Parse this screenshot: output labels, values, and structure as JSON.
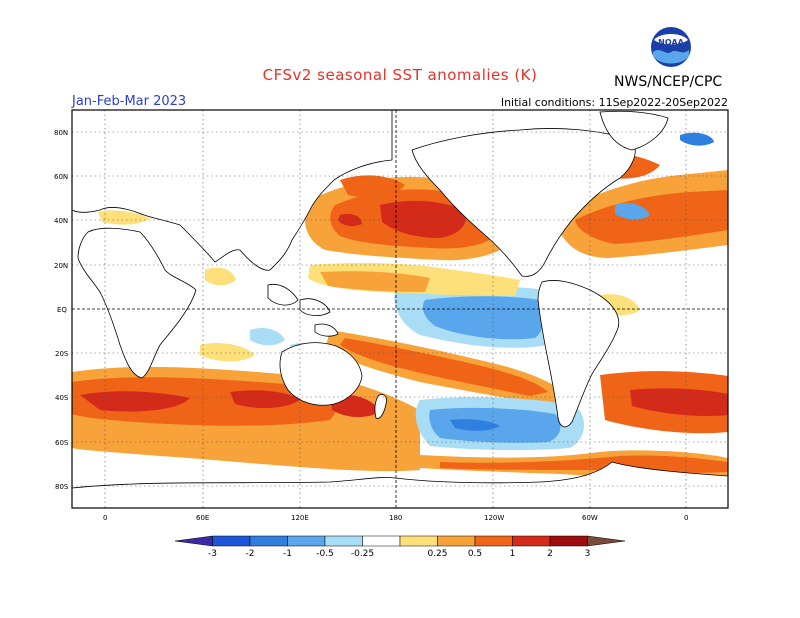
{
  "header": {
    "title": "CFSv2 seasonal SST anomalies (K)",
    "title_color": "#e8302a",
    "agency": "NWS/NCEP/CPC",
    "season": "Jan-Feb-Mar 2023",
    "season_color": "#2a3fd0",
    "initial_conditions": "Initial conditions: 11Sep2022-20Sep2022",
    "logo_text": "NOAA"
  },
  "map": {
    "lat_labels": [
      "80N",
      "60N",
      "40N",
      "20N",
      "EQ",
      "20S",
      "40S",
      "60S",
      "80S"
    ],
    "lon_labels": [
      "0",
      "60E",
      "120E",
      "180",
      "120W",
      "60W",
      "0"
    ]
  },
  "colorbar": {
    "labels": [
      "-3",
      "-2",
      "-1",
      "-0.5",
      "-0.25",
      "0.25",
      "0.5",
      "1",
      "2",
      "3"
    ],
    "colors": [
      "#3a2aa8",
      "#1e55d8",
      "#2f7fe0",
      "#5aa6ec",
      "#a9dcf5",
      "#ffffff",
      "#fde07a",
      "#f7a33a",
      "#f06418",
      "#d42a1a",
      "#9e0e0e",
      "#7a4a3a"
    ]
  }
}
